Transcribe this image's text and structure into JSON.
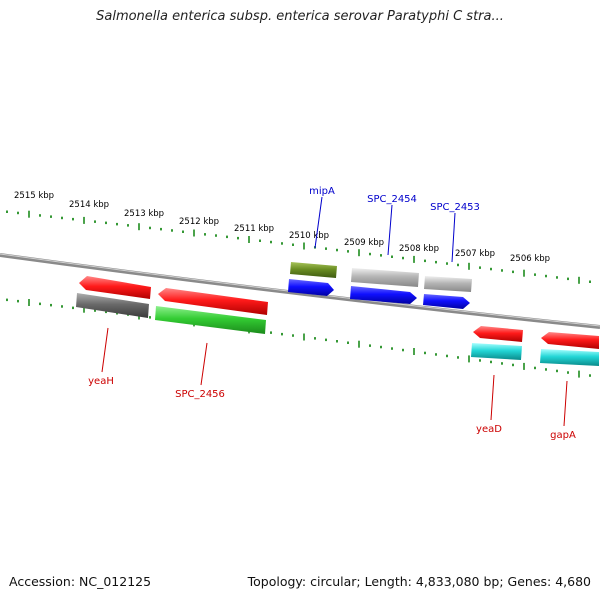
{
  "title": "Salmonella enterica subsp. enterica serovar Paratyphi C stra...",
  "footer": {
    "accession": "Accession: NC_012125",
    "topology": "Topology: circular; Length: 4,833,080 bp; Genes: 4,680"
  },
  "colors": {
    "backbone": "#8a8a8a",
    "tick": "#1e8c1e",
    "label_forward": "#0000cc",
    "label_reverse": "#cc0000"
  },
  "scale_labels": [
    "2515 kbp",
    "2514 kbp",
    "2513 kbp",
    "2512 kbp",
    "2511 kbp",
    "2510 kbp",
    "2509 kbp",
    "2508 kbp",
    "2507 kbp",
    "2506 kbp"
  ],
  "genes": [
    {
      "name": "mipA",
      "strand": "forward"
    },
    {
      "name": "SPC_2454",
      "strand": "forward"
    },
    {
      "name": "SPC_2453",
      "strand": "forward"
    },
    {
      "name": "yeaH",
      "strand": "reverse"
    },
    {
      "name": "SPC_2456",
      "strand": "reverse"
    },
    {
      "name": "yeaD",
      "strand": "reverse"
    },
    {
      "name": "gapA",
      "strand": "reverse"
    }
  ]
}
